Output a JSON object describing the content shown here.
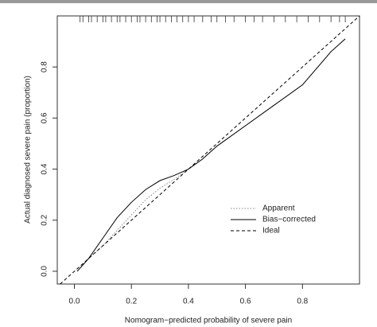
{
  "chart_data": {
    "type": "line",
    "x_label": "Nomogram−predicted probability of severe pain",
    "y_label": "Actual diagnosed severe pain (proportion)",
    "xlim": [
      -0.06,
      1.0
    ],
    "ylim": [
      -0.05,
      1.0
    ],
    "xticks": [
      {
        "value": 0,
        "label": "0.0"
      },
      0.2,
      0.4,
      0.6,
      0.8
    ],
    "yticks": [
      {
        "value": 0,
        "label": "0.0"
      },
      0.2,
      0.4,
      0.6,
      0.8
    ],
    "rug": [
      0.02,
      0.03,
      0.05,
      0.06,
      0.08,
      0.1,
      0.11,
      0.13,
      0.15,
      0.16,
      0.18,
      0.2,
      0.22,
      0.23,
      0.25,
      0.27,
      0.29,
      0.3,
      0.32,
      0.34,
      0.36,
      0.38,
      0.4,
      0.42,
      0.45,
      0.48,
      0.5,
      0.53,
      0.56,
      0.6,
      0.63,
      0.66,
      0.7,
      0.74,
      0.78,
      0.82,
      0.86,
      0.9,
      0.93,
      0.95
    ],
    "series": [
      {
        "name": "Apparent",
        "color": "#888888",
        "dash": "dotted",
        "x": [
          0.01,
          0.05,
          0.1,
          0.15,
          0.2,
          0.25,
          0.3,
          0.35,
          0.4,
          0.45,
          0.5,
          0.6,
          0.7,
          0.8,
          0.9,
          0.95
        ],
        "values": [
          0.0,
          0.05,
          0.1,
          0.16,
          0.22,
          0.28,
          0.325,
          0.36,
          0.4,
          0.44,
          0.49,
          0.57,
          0.65,
          0.73,
          0.86,
          0.91
        ]
      },
      {
        "name": "Bias−corrected",
        "color": "#000000",
        "dash": "solid",
        "x": [
          0.01,
          0.05,
          0.1,
          0.15,
          0.2,
          0.25,
          0.3,
          0.35,
          0.4,
          0.45,
          0.5,
          0.6,
          0.7,
          0.8,
          0.9,
          0.95
        ],
        "values": [
          0.0,
          0.05,
          0.13,
          0.21,
          0.27,
          0.32,
          0.355,
          0.375,
          0.4,
          0.44,
          0.49,
          0.57,
          0.65,
          0.73,
          0.86,
          0.91
        ]
      },
      {
        "name": "Ideal",
        "color": "#000000",
        "dash": "dashed",
        "x": [
          -0.05,
          1.0
        ],
        "values": [
          -0.05,
          1.0
        ]
      }
    ]
  }
}
